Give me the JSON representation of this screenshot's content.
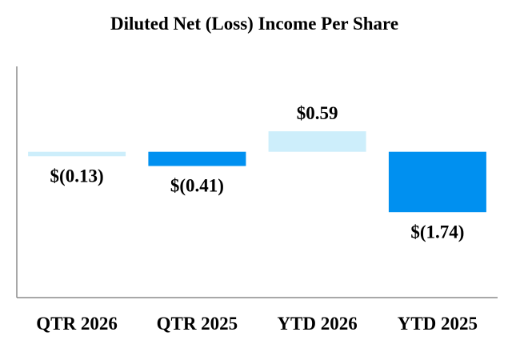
{
  "chart_data": {
    "type": "bar",
    "title": "Diluted Net (Loss) Income Per Share",
    "categories": [
      "QTR 2026",
      "QTR 2025",
      "YTD 2026",
      "YTD 2025"
    ],
    "values": [
      -0.13,
      -0.41,
      0.59,
      -1.74
    ],
    "value_labels": [
      "$(0.13)",
      "$(0.41)",
      "$0.59",
      "$(1.74)"
    ],
    "bar_colors": [
      "#cdeefb",
      "#0090f0",
      "#cdeefb",
      "#0090f0"
    ],
    "xlabel": "",
    "ylabel": "",
    "ylim": [
      -4.2,
      2.46
    ],
    "grid": false,
    "legend": "none"
  }
}
